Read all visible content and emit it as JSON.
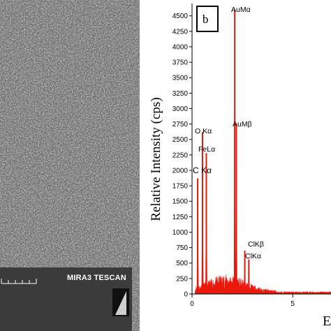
{
  "sem_panel": {
    "instrument_label": "MIRA3 TESCAN",
    "background_color": "#6e6e6e"
  },
  "chart_data": {
    "type": "bar",
    "panel_label": "b",
    "ylabel": "Relative Intensity (cps)",
    "xlabel_partial": "E",
    "xlim": [
      0,
      6.9
    ],
    "ylim": [
      0,
      4700
    ],
    "x_ticks": [
      0,
      5
    ],
    "y_ticks": [
      0,
      250,
      500,
      750,
      1000,
      1250,
      1500,
      1750,
      2000,
      2250,
      2500,
      2750,
      3000,
      3250,
      3500,
      3750,
      4000,
      4250,
      4500
    ],
    "series_color": "#e8190c",
    "peaks": [
      {
        "label": "C Kα",
        "x": 0.28,
        "y": 1870
      },
      {
        "label": "O Kα",
        "x": 0.52,
        "y": 2620
      },
      {
        "label": "FeLα",
        "x": 0.71,
        "y": 2280
      },
      {
        "label": "AuMβ",
        "x": 2.2,
        "y": 2760
      },
      {
        "label": "AuMα",
        "x": 2.12,
        "y": 4600
      },
      {
        "label": "ClKβ",
        "x": 2.82,
        "y": 560
      },
      {
        "label": "ClKα",
        "x": 2.62,
        "y": 700
      }
    ],
    "peak_label_texts": {
      "c_ka": "C Kα",
      "o_ka": "O Kα",
      "fe_la": "FeLα",
      "au_mb": "AuMβ",
      "au_ma": "AuMα",
      "cl_kb": "ClKβ",
      "cl_ka": "ClKα"
    }
  }
}
